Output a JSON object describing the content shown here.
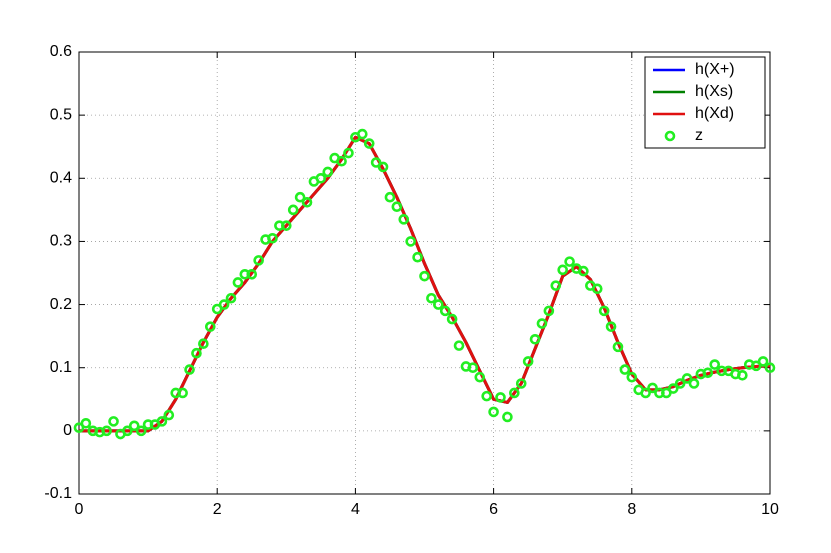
{
  "chart_data": {
    "type": "line",
    "xlim": [
      0,
      10
    ],
    "ylim": [
      -0.1,
      0.6
    ],
    "xticks": [
      0,
      2,
      4,
      6,
      8,
      10
    ],
    "yticks": [
      -0.1,
      0,
      0.1,
      0.2,
      0.3,
      0.4,
      0.5,
      0.6
    ],
    "grid": true,
    "legend": "upper right",
    "series": [
      {
        "name": "h(X+)",
        "color": "#0000ff",
        "style": "line",
        "x": [
          0,
          0.2,
          0.4,
          0.6,
          0.8,
          1,
          1.2,
          1.4,
          1.6,
          1.8,
          2,
          2.2,
          2.4,
          2.6,
          2.8,
          3,
          3.2,
          3.4,
          3.6,
          3.8,
          4,
          4.2,
          4.4,
          4.6,
          4.8,
          5,
          5.2,
          5.4,
          5.6,
          5.8,
          6,
          6.2,
          6.4,
          6.6,
          6.8,
          7,
          7.2,
          7.4,
          7.6,
          7.8,
          8,
          8.2,
          8.4,
          8.6,
          8.8,
          9,
          9.2,
          9.4,
          9.6,
          9.8,
          10
        ],
        "values": [
          0,
          0,
          0,
          0,
          0,
          0,
          0.015,
          0.05,
          0.095,
          0.14,
          0.18,
          0.21,
          0.235,
          0.265,
          0.3,
          0.325,
          0.35,
          0.375,
          0.4,
          0.43,
          0.465,
          0.455,
          0.415,
          0.37,
          0.32,
          0.265,
          0.215,
          0.18,
          0.14,
          0.095,
          0.05,
          0.045,
          0.075,
          0.13,
          0.185,
          0.245,
          0.26,
          0.24,
          0.195,
          0.14,
          0.09,
          0.065,
          0.065,
          0.07,
          0.08,
          0.088,
          0.093,
          0.097,
          0.1,
          0.102,
          0.103
        ]
      },
      {
        "name": "h(Xs)",
        "color": "#008000",
        "style": "line",
        "x": [
          0,
          0.2,
          0.4,
          0.6,
          0.8,
          1,
          1.2,
          1.4,
          1.6,
          1.8,
          2,
          2.2,
          2.4,
          2.6,
          2.8,
          3,
          3.2,
          3.4,
          3.6,
          3.8,
          4,
          4.2,
          4.4,
          4.6,
          4.8,
          5,
          5.2,
          5.4,
          5.6,
          5.8,
          6,
          6.2,
          6.4,
          6.6,
          6.8,
          7,
          7.2,
          7.4,
          7.6,
          7.8,
          8,
          8.2,
          8.4,
          8.6,
          8.8,
          9,
          9.2,
          9.4,
          9.6,
          9.8,
          10
        ],
        "values": [
          0,
          0,
          0,
          0,
          0,
          0,
          0.015,
          0.05,
          0.095,
          0.14,
          0.18,
          0.21,
          0.235,
          0.265,
          0.3,
          0.325,
          0.35,
          0.375,
          0.4,
          0.43,
          0.465,
          0.455,
          0.415,
          0.37,
          0.32,
          0.265,
          0.215,
          0.18,
          0.14,
          0.095,
          0.05,
          0.045,
          0.075,
          0.13,
          0.185,
          0.245,
          0.26,
          0.24,
          0.195,
          0.14,
          0.09,
          0.065,
          0.065,
          0.07,
          0.08,
          0.088,
          0.093,
          0.097,
          0.1,
          0.102,
          0.103
        ]
      },
      {
        "name": "h(Xd)",
        "color": "#e01010",
        "style": "line",
        "x": [
          0,
          0.2,
          0.4,
          0.6,
          0.8,
          1,
          1.2,
          1.4,
          1.6,
          1.8,
          2,
          2.2,
          2.4,
          2.6,
          2.8,
          3,
          3.2,
          3.4,
          3.6,
          3.8,
          4,
          4.2,
          4.4,
          4.6,
          4.8,
          5,
          5.2,
          5.4,
          5.6,
          5.8,
          6,
          6.2,
          6.4,
          6.6,
          6.8,
          7,
          7.2,
          7.4,
          7.6,
          7.8,
          8,
          8.2,
          8.4,
          8.6,
          8.8,
          9,
          9.2,
          9.4,
          9.6,
          9.8,
          10
        ],
        "values": [
          0,
          0,
          0,
          0,
          0,
          0,
          0.015,
          0.05,
          0.095,
          0.14,
          0.18,
          0.21,
          0.235,
          0.265,
          0.3,
          0.325,
          0.35,
          0.375,
          0.4,
          0.43,
          0.465,
          0.455,
          0.415,
          0.37,
          0.32,
          0.265,
          0.215,
          0.18,
          0.14,
          0.095,
          0.05,
          0.045,
          0.075,
          0.13,
          0.185,
          0.245,
          0.26,
          0.24,
          0.195,
          0.14,
          0.09,
          0.065,
          0.065,
          0.07,
          0.08,
          0.088,
          0.093,
          0.097,
          0.1,
          0.102,
          0.103
        ]
      },
      {
        "name": "z",
        "color": "#22ee22",
        "style": "marker",
        "x": [
          0,
          0.1,
          0.2,
          0.3,
          0.4,
          0.5,
          0.6,
          0.7,
          0.8,
          0.9,
          1,
          1.1,
          1.2,
          1.3,
          1.4,
          1.5,
          1.6,
          1.7,
          1.8,
          1.9,
          2,
          2.1,
          2.2,
          2.3,
          2.4,
          2.5,
          2.6,
          2.7,
          2.8,
          2.9,
          3,
          3.1,
          3.2,
          3.3,
          3.4,
          3.5,
          3.6,
          3.7,
          3.8,
          3.9,
          4,
          4.1,
          4.2,
          4.3,
          4.4,
          4.5,
          4.6,
          4.7,
          4.8,
          4.9,
          5,
          5.1,
          5.2,
          5.3,
          5.4,
          5.5,
          5.6,
          5.7,
          5.8,
          5.9,
          6,
          6.1,
          6.2,
          6.3,
          6.4,
          6.5,
          6.6,
          6.7,
          6.8,
          6.9,
          7,
          7.1,
          7.2,
          7.3,
          7.4,
          7.5,
          7.6,
          7.7,
          7.8,
          7.9,
          8,
          8.1,
          8.2,
          8.3,
          8.4,
          8.5,
          8.6,
          8.7,
          8.8,
          8.9,
          9,
          9.1,
          9.2,
          9.3,
          9.4,
          9.5,
          9.6,
          9.7,
          9.8,
          9.9,
          10
        ],
        "values": [
          0.005,
          0.012,
          0,
          -0.002,
          0,
          0.015,
          -0.005,
          0,
          0.008,
          0,
          0.01,
          0.01,
          0.015,
          0.025,
          0.06,
          0.06,
          0.097,
          0.123,
          0.138,
          0.165,
          0.193,
          0.2,
          0.21,
          0.235,
          0.248,
          0.248,
          0.27,
          0.303,
          0.305,
          0.325,
          0.325,
          0.35,
          0.37,
          0.362,
          0.395,
          0.4,
          0.41,
          0.432,
          0.427,
          0.44,
          0.465,
          0.47,
          0.455,
          0.425,
          0.418,
          0.37,
          0.355,
          0.335,
          0.3,
          0.275,
          0.245,
          0.21,
          0.2,
          0.19,
          0.177,
          0.135,
          0.102,
          0.1,
          0.085,
          0.055,
          0.03,
          0.053,
          0.022,
          0.06,
          0.075,
          0.11,
          0.145,
          0.17,
          0.19,
          0.23,
          0.255,
          0.268,
          0.257,
          0.253,
          0.23,
          0.225,
          0.19,
          0.165,
          0.133,
          0.097,
          0.085,
          0.065,
          0.06,
          0.068,
          0.06,
          0.06,
          0.067,
          0.075,
          0.083,
          0.075,
          0.09,
          0.092,
          0.105,
          0.095,
          0.095,
          0.09,
          0.088,
          0.105,
          0.103,
          0.11,
          0.1
        ]
      }
    ]
  }
}
